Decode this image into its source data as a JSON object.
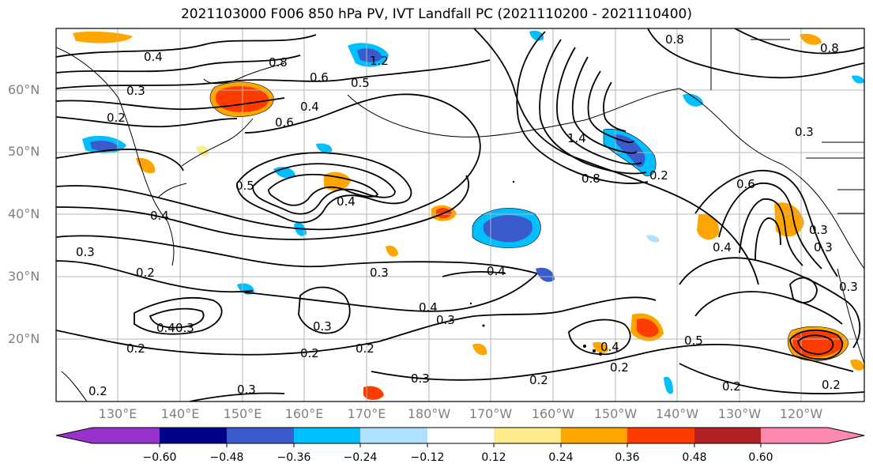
{
  "title": "2021103000 F006 850 hPa PV, IVT Landfall PC (2021110200 - 2021110400)",
  "lat_labels": [
    "60°N",
    "50°N",
    "40°N",
    "30°N",
    "20°N"
  ],
  "lon_labels": [
    "130°E",
    "140°E",
    "150°E",
    "160°E",
    "170°E",
    "180°W",
    "170°W",
    "160°W",
    "150°W",
    "140°W",
    "130°W",
    "120°W"
  ],
  "colorbar": {
    "ticks": [
      "−0.60",
      "−0.48",
      "−0.36",
      "−0.24",
      "−0.12",
      "0.12",
      "0.24",
      "0.36",
      "0.48",
      "0.60"
    ],
    "colors": [
      "#9932cc",
      "#00008b",
      "#3a5bcc",
      "#00bfff",
      "#b0e0ff",
      "#ffffff",
      "#ffeb8a",
      "#ffa500",
      "#ff3c00",
      "#b22222",
      "#ff88b0"
    ]
  },
  "contour_labels": [
    "0.4",
    "0.8",
    "1.2",
    "0.5",
    "0.6",
    "0.4",
    "0.3",
    "0.2",
    "0.6",
    "0.4",
    "0.5",
    "0.4",
    "0.3",
    "0.2",
    "0.3",
    "0.3",
    "0.4",
    "0.3",
    "0.4",
    "0.3",
    "0.2",
    "0.2",
    "0.3",
    "0.2",
    "0.3",
    "0.2",
    "0.2",
    "0.8",
    "1.4",
    "0.8",
    "0.2",
    "0.3",
    "0.6",
    "0.4",
    "0.3",
    "0.3",
    "0.5",
    "0.2",
    "0.2",
    "0.8",
    "0.4",
    "0.2",
    "0.4",
    "0.3"
  ]
}
